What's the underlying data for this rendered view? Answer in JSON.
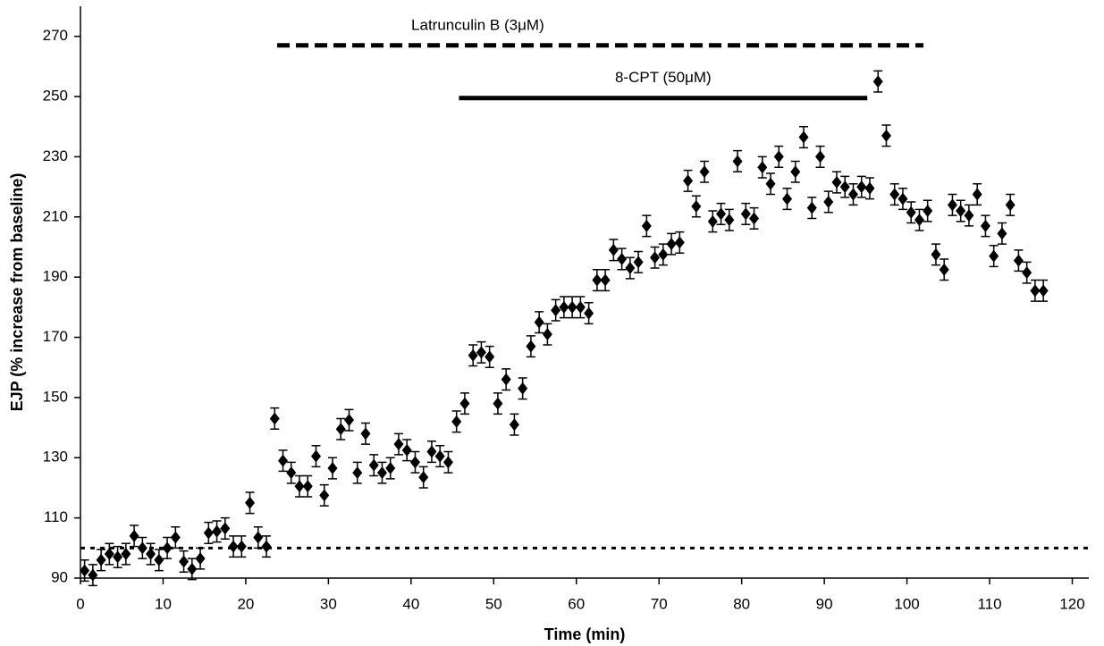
{
  "chart_data": {
    "type": "scatter",
    "x_label": "Time (min)",
    "y_label": "EJP (% increase from baseline)",
    "xlim": [
      0,
      122
    ],
    "ylim": [
      90,
      280
    ],
    "xticks": [
      0,
      10,
      20,
      30,
      40,
      50,
      60,
      70,
      80,
      90,
      100,
      110,
      120
    ],
    "yticks": [
      90,
      110,
      130,
      150,
      170,
      190,
      210,
      230,
      250,
      270
    ],
    "series": [
      {
        "color": "#000000",
        "x": [
          0.5,
          1.5,
          2.5,
          3.5,
          4.5,
          5.5,
          6.5,
          7.5,
          8.5,
          9.5,
          10.5,
          11.5,
          12.5,
          13.5,
          14.5,
          15.5,
          16.5,
          17.5,
          18.5,
          19.5,
          20.5,
          21.5,
          22.5,
          23.5,
          24.5,
          25.5,
          26.5,
          27.5,
          28.5,
          29.5,
          30.5,
          31.5,
          32.5,
          33.5,
          34.5,
          35.5,
          36.5,
          37.5,
          38.5,
          39.5,
          40.5,
          41.5,
          42.5,
          43.5,
          44.5,
          45.5,
          46.5,
          47.5,
          48.5,
          49.5,
          50.5,
          51.5,
          52.5,
          53.5,
          54.5,
          55.5,
          56.5,
          57.5,
          58.5,
          59.5,
          60.5,
          61.5,
          62.5,
          63.5,
          64.5,
          65.5,
          66.5,
          67.5,
          68.5,
          69.5,
          70.5,
          71.5,
          72.5,
          73.5,
          74.5,
          75.5,
          76.5,
          77.5,
          78.5,
          79.5,
          80.5,
          81.5,
          82.5,
          83.5,
          84.5,
          85.5,
          86.5,
          87.5,
          88.5,
          89.5,
          90.5,
          91.5,
          92.5,
          93.5,
          94.5,
          95.5,
          96.5,
          97.5,
          98.5,
          99.5,
          100.5,
          101.5,
          102.5,
          103.5,
          104.5,
          105.5,
          106.5,
          107.5,
          108.5,
          109.5,
          110.5,
          111.5,
          112.5,
          113.5,
          114.5,
          115.5,
          116.5
        ],
        "values": [
          92.5,
          91,
          96,
          98,
          97,
          98,
          104,
          100,
          98,
          96,
          100,
          103.5,
          95.5,
          93,
          96.5,
          105,
          105.5,
          106.5,
          100.5,
          100.5,
          115,
          103.5,
          100.5,
          143,
          129,
          125,
          120.5,
          120.5,
          130.5,
          117.5,
          126.5,
          139.5,
          142.5,
          125,
          138,
          127.5,
          125,
          126.5,
          134.5,
          132.5,
          128.5,
          123.5,
          132,
          130.5,
          128.5,
          142,
          148,
          164,
          165,
          163.5,
          148,
          156,
          141,
          153,
          167,
          175,
          171,
          179,
          180,
          180,
          180,
          178,
          189,
          189,
          199,
          196,
          193,
          195,
          207,
          196.5,
          197.5,
          201,
          201.5,
          222,
          213.5,
          225,
          208.5,
          211,
          209,
          228.5,
          211,
          209.5,
          226.5,
          221,
          230,
          216,
          225,
          236.5,
          213,
          230,
          215,
          221.5,
          220,
          217.5,
          220,
          219.5,
          255,
          237,
          217.5,
          216,
          211.5,
          209,
          212,
          197.5,
          192.5,
          214,
          212,
          210.5,
          217.5,
          207,
          197,
          204.5,
          214,
          195.5,
          191.5,
          185.5,
          185.5
        ],
        "errors": [
          3.5,
          3.5,
          3.5,
          3.5,
          3.5,
          3.5,
          3.5,
          3.5,
          3.5,
          3.5,
          3.5,
          3.5,
          3.5,
          3.5,
          3.5,
          3.5,
          3.5,
          3.5,
          3.5,
          3.5,
          3.5,
          3.5,
          3.5,
          3.5,
          3.5,
          3.5,
          3.5,
          3.5,
          3.5,
          3.5,
          3.5,
          3.5,
          3.5,
          3.5,
          3.5,
          3.5,
          3.5,
          3.5,
          3.5,
          3.5,
          3.5,
          3.5,
          3.5,
          3.5,
          3.5,
          3.5,
          3.5,
          3.5,
          3.5,
          3.5,
          3.5,
          3.5,
          3.5,
          3.5,
          3.5,
          3.5,
          3.5,
          3.5,
          3.5,
          3.5,
          3.5,
          3.5,
          3.5,
          3.5,
          3.5,
          3.5,
          3.5,
          3.5,
          3.5,
          3.5,
          3.5,
          3.5,
          3.5,
          3.5,
          3.5,
          3.5,
          3.5,
          3.5,
          3.5,
          3.5,
          3.5,
          3.5,
          3.5,
          3.5,
          3.5,
          3.5,
          3.5,
          3.5,
          3.5,
          3.5,
          3.5,
          3.5,
          3.5,
          3.5,
          3.5,
          3.5,
          3.5,
          3.5,
          3.5,
          3.5,
          3.5,
          3.5,
          3.5,
          3.5,
          3.5,
          3.5,
          3.5,
          3.5,
          3.5,
          3.5,
          3.5,
          3.5,
          3.5,
          3.5,
          3.5,
          3.5,
          3.5
        ]
      }
    ],
    "lines": [
      {
        "text": "Latrunculin B (3μM)",
        "x": [
          23.8,
          102
        ],
        "y": 267,
        "style": "dashed",
        "label_align": "start"
      },
      {
        "text": "8-CPT (50μM)",
        "x": [
          45.8,
          95.2
        ],
        "y": 249.5,
        "style": "solid",
        "label_align": "middle"
      },
      {
        "x": [
          0,
          122
        ],
        "y": 100,
        "style": "dotted"
      }
    ]
  }
}
